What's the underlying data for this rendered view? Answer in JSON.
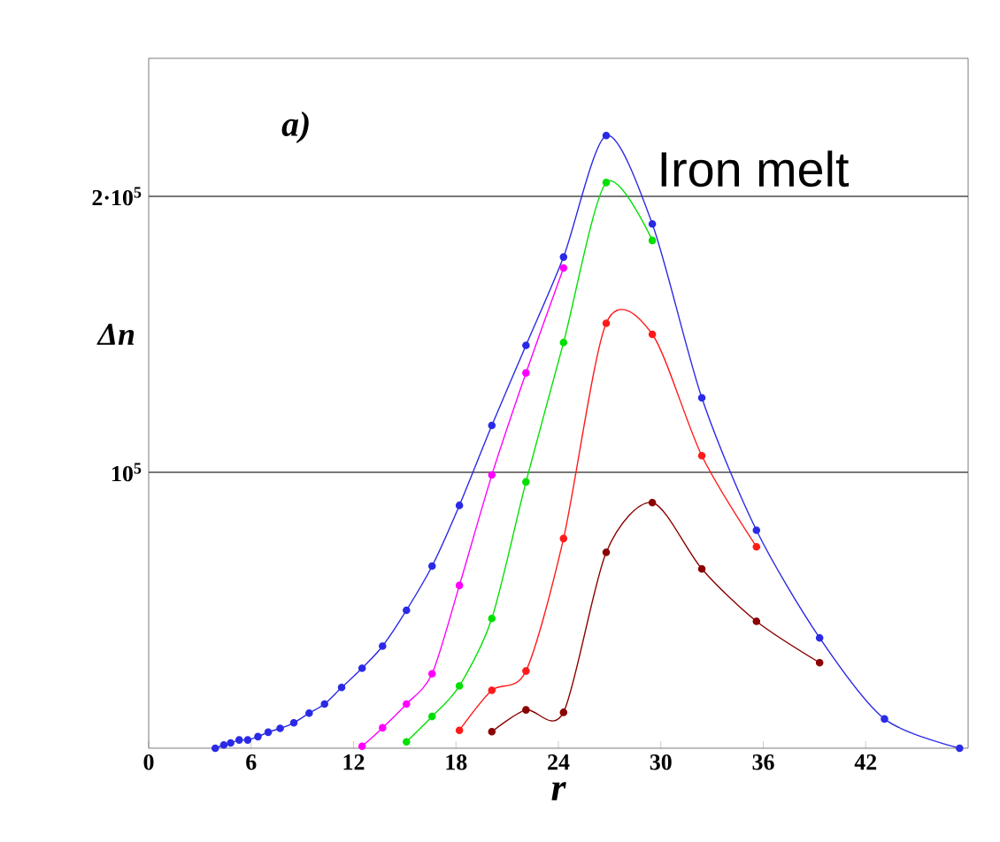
{
  "chart_data": {
    "type": "line",
    "xlabel": "r",
    "ylabel": "Δn",
    "annotations": [
      "a)",
      "Iron melt"
    ],
    "xlim": [
      0,
      48
    ],
    "ylim": [
      0,
      250000
    ],
    "xticks": [
      0,
      6,
      12,
      18,
      24,
      30,
      36,
      42
    ],
    "yticks": [
      {
        "value": 100000,
        "label": "10$^{5}$"
      },
      {
        "value": 200000,
        "label": "2·10$^{5}$"
      }
    ],
    "grid": "y",
    "marker": "circle",
    "line_style": "solid",
    "series": [
      {
        "color": "#2a2ae6",
        "x": [
          3.9,
          4.4,
          4.8,
          5.3,
          5.8,
          6.4,
          7.0,
          7.7,
          8.5,
          9.4,
          10.3,
          11.3,
          12.5,
          13.7,
          15.1,
          16.6,
          18.2,
          20.1,
          22.1,
          24.3,
          26.8,
          29.5,
          32.4,
          35.6,
          39.3,
          43.1,
          47.5
        ],
        "values": [
          0,
          1200,
          1900,
          3000,
          3000,
          4200,
          5800,
          7200,
          9200,
          12700,
          16000,
          22000,
          29000,
          37000,
          50000,
          66000,
          88000,
          117000,
          146000,
          178000,
          222000,
          190000,
          127000,
          79000,
          40000,
          10600,
          0
        ]
      },
      {
        "color": "#ff00ff",
        "x": [
          12.5,
          13.7,
          15.1,
          16.6,
          18.2,
          20.1,
          22.1,
          24.3
        ],
        "values": [
          700,
          7400,
          16000,
          27000,
          59000,
          99000,
          136000,
          174000
        ]
      },
      {
        "color": "#00e000",
        "x": [
          15.1,
          16.6,
          18.2,
          20.1,
          22.1,
          24.3,
          26.8,
          29.5
        ],
        "values": [
          2300,
          11500,
          22600,
          47000,
          96500,
          147000,
          205000,
          184000
        ]
      },
      {
        "color": "#ff1a1a",
        "x": [
          18.2,
          20.1,
          22.1,
          24.3,
          26.8,
          29.5,
          32.4,
          35.6
        ],
        "values": [
          6500,
          21000,
          28000,
          76000,
          154000,
          150000,
          106000,
          73000
        ]
      },
      {
        "color": "#8b0000",
        "x": [
          20.1,
          22.1,
          24.3,
          26.8,
          29.5,
          32.4,
          35.6,
          39.3
        ],
        "values": [
          6000,
          13900,
          13000,
          71000,
          89000,
          65000,
          46000,
          31000
        ]
      }
    ]
  }
}
